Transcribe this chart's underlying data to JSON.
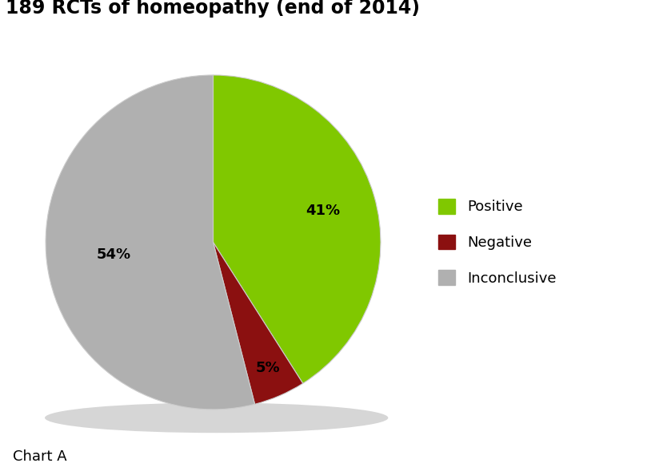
{
  "title": "189 RCTs of homeopathy (end of 2014)",
  "subtitle": "Chart A",
  "slices": [
    41,
    5,
    54
  ],
  "labels": [
    "Positive",
    "Negative",
    "Inconclusive"
  ],
  "colors": [
    "#80c800",
    "#8b1010",
    "#b0b0b0"
  ],
  "shadow_color": "#888888",
  "pct_labels": [
    "41%",
    "5%",
    "54%"
  ],
  "start_angle": 90,
  "background_color": "#ffffff",
  "title_fontsize": 17,
  "label_fontsize": 13,
  "legend_fontsize": 13,
  "counterclock": false
}
